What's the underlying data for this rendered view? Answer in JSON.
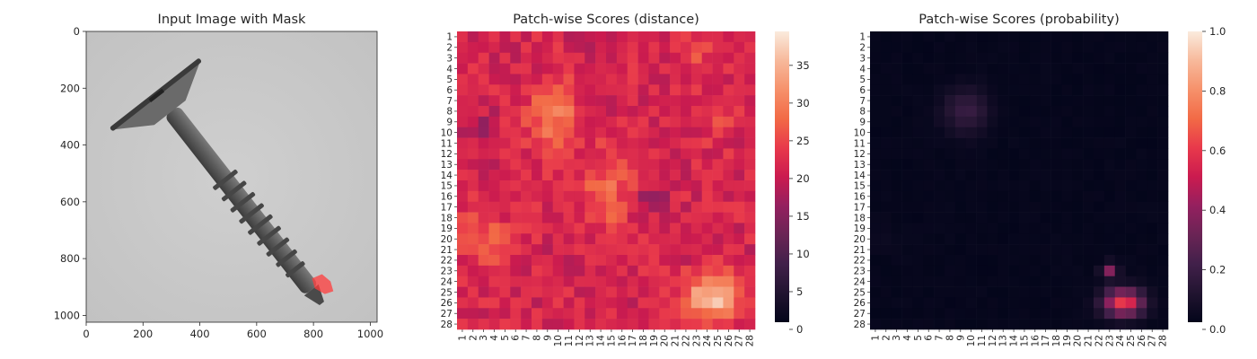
{
  "figure": {
    "colormap": "rocket",
    "mask_color": "#ff3c3c"
  },
  "chart_data": [
    {
      "type": "image",
      "title": "Input Image with Mask",
      "subject": "grey screw on light grey background with red mask overlay on the tip",
      "xlim": [
        0,
        1024
      ],
      "ylim": [
        1024,
        0
      ],
      "xticks": [
        "0",
        "200",
        "400",
        "600",
        "800",
        "1000"
      ],
      "yticks": [
        "0",
        "200",
        "400",
        "600",
        "800",
        "1000"
      ],
      "xtick_values": [
        0,
        200,
        400,
        600,
        800,
        1000
      ],
      "ytick_values": [
        0,
        200,
        400,
        600,
        800,
        1000
      ],
      "mask_region": "screw tip, approx x 790-870, y 860-920"
    },
    {
      "type": "heatmap",
      "title": "Patch-wise Scores (distance)",
      "rows": 28,
      "cols": 28,
      "xticks": [
        "1",
        "2",
        "3",
        "4",
        "5",
        "6",
        "7",
        "8",
        "9",
        "10",
        "11",
        "12",
        "13",
        "14",
        "15",
        "16",
        "17",
        "18",
        "19",
        "20",
        "21",
        "22",
        "23",
        "24",
        "25",
        "26",
        "27",
        "28"
      ],
      "yticks": [
        "1",
        "2",
        "3",
        "4",
        "5",
        "6",
        "7",
        "8",
        "9",
        "10",
        "11",
        "12",
        "13",
        "14",
        "15",
        "16",
        "17",
        "18",
        "19",
        "20",
        "21",
        "22",
        "23",
        "24",
        "25",
        "26",
        "27",
        "28"
      ],
      "colorbar": {
        "min": 0,
        "max": 39.5,
        "ticks": [
          "0",
          "5",
          "10",
          "15",
          "20",
          "25",
          "30",
          "35"
        ],
        "tick_values": [
          0,
          5,
          10,
          15,
          20,
          25,
          30,
          35
        ]
      },
      "baseline": 21,
      "blobs": [
        {
          "row": 8.5,
          "col": 9.5,
          "sr": 2.2,
          "sc": 1.6,
          "amp": 9
        },
        {
          "row": 15.5,
          "col": 14.5,
          "sr": 2.8,
          "sc": 1.6,
          "amp": 6
        },
        {
          "row": 20,
          "col": 3,
          "sr": 1.8,
          "sc": 1.5,
          "amp": 6
        },
        {
          "row": 25.5,
          "col": 24.5,
          "sr": 1.4,
          "sc": 1.8,
          "amp": 16
        },
        {
          "row": 8.5,
          "col": 25,
          "sr": 1.5,
          "sc": 1.3,
          "amp": 4
        },
        {
          "row": 3,
          "col": 23,
          "sr": 1.5,
          "sc": 1.5,
          "amp": 3
        },
        {
          "row": 2,
          "col": 13,
          "sr": 0.8,
          "sc": 0.8,
          "amp": -6
        },
        {
          "row": 16,
          "col": 19,
          "sr": 0.8,
          "sc": 0.9,
          "amp": -6
        },
        {
          "row": 10,
          "col": 3,
          "sr": 1.2,
          "sc": 1.0,
          "amp": -4
        }
      ]
    },
    {
      "type": "heatmap",
      "title": "Patch-wise Scores (probability)",
      "rows": 28,
      "cols": 28,
      "xticks": [
        "1",
        "2",
        "3",
        "4",
        "5",
        "6",
        "7",
        "8",
        "9",
        "10",
        "11",
        "12",
        "13",
        "14",
        "15",
        "16",
        "17",
        "18",
        "19",
        "20",
        "21",
        "22",
        "23",
        "24",
        "25",
        "26",
        "27",
        "28"
      ],
      "yticks": [
        "1",
        "2",
        "3",
        "4",
        "5",
        "6",
        "7",
        "8",
        "9",
        "10",
        "11",
        "12",
        "13",
        "14",
        "15",
        "16",
        "17",
        "18",
        "19",
        "20",
        "21",
        "22",
        "23",
        "24",
        "25",
        "26",
        "27",
        "28"
      ],
      "colorbar": {
        "min": 0,
        "max": 1,
        "ticks": [
          "0.0",
          "0.2",
          "0.4",
          "0.6",
          "0.8",
          "1.0"
        ],
        "tick_values": [
          0,
          0.2,
          0.4,
          0.6,
          0.8,
          1.0
        ]
      },
      "baseline": 0.01,
      "blobs": [
        {
          "row": 26,
          "col": 24.3,
          "sr": 0.9,
          "sc": 1.3,
          "amp": 0.6
        },
        {
          "row": 23,
          "col": 23,
          "sr": 0.5,
          "sc": 0.5,
          "amp": 0.35
        },
        {
          "row": 8,
          "col": 9.5,
          "sr": 1.5,
          "sc": 1.5,
          "amp": 0.16
        },
        {
          "row": 20,
          "col": 2,
          "sr": 1.0,
          "sc": 1.0,
          "amp": 0.02
        }
      ]
    }
  ]
}
